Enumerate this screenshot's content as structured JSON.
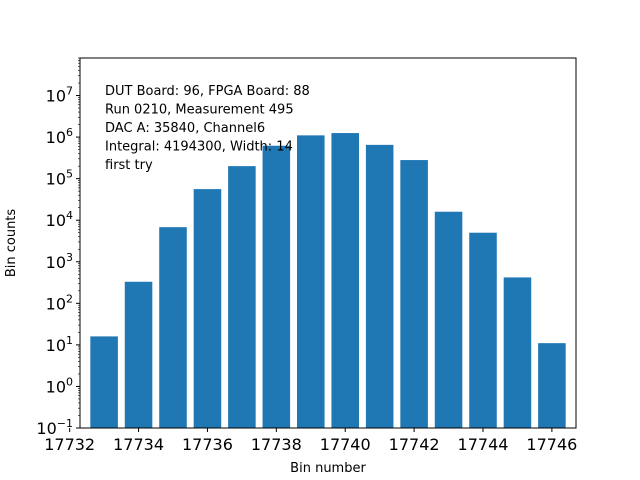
{
  "chart_data": {
    "type": "bar",
    "scale_y": "log",
    "xlabel": "Bin number",
    "ylabel": "Bin counts",
    "xlim": [
      17732.3,
      17746.7
    ],
    "ylim": [
      0.1,
      80000000
    ],
    "x_ticks": [
      17732,
      17734,
      17736,
      17738,
      17740,
      17742,
      17744,
      17746
    ],
    "y_ticks": [
      {
        "value": 0.1,
        "base": "10",
        "exp": "−1"
      },
      {
        "value": 1,
        "base": "10",
        "exp": "0"
      },
      {
        "value": 10,
        "base": "10",
        "exp": "1"
      },
      {
        "value": 100,
        "base": "10",
        "exp": "2"
      },
      {
        "value": 1000,
        "base": "10",
        "exp": "3"
      },
      {
        "value": 10000,
        "base": "10",
        "exp": "4"
      },
      {
        "value": 100000,
        "base": "10",
        "exp": "5"
      },
      {
        "value": 1000000,
        "base": "10",
        "exp": "6"
      },
      {
        "value": 10000000,
        "base": "10",
        "exp": "7"
      }
    ],
    "bar_color": "#1f77b4",
    "bar_width": 0.8,
    "bars": [
      {
        "x": 17733,
        "y": 16
      },
      {
        "x": 17734,
        "y": 330
      },
      {
        "x": 17735,
        "y": 6800
      },
      {
        "x": 17736,
        "y": 56000
      },
      {
        "x": 17737,
        "y": 200000
      },
      {
        "x": 17738,
        "y": 620000
      },
      {
        "x": 17739,
        "y": 1100000
      },
      {
        "x": 17740,
        "y": 1250000
      },
      {
        "x": 17741,
        "y": 650000
      },
      {
        "x": 17742,
        "y": 280000
      },
      {
        "x": 17743,
        "y": 16000
      },
      {
        "x": 17744,
        "y": 5000
      },
      {
        "x": 17745,
        "y": 420
      },
      {
        "x": 17746,
        "y": 11
      }
    ],
    "annotation_lines": [
      "DUT Board: 96, FPGA Board: 88",
      "Run 0210, Measurement 495",
      "DAC A: 35840, Channel6",
      "Integral: 4194300, Width: 14",
      "first try"
    ]
  }
}
